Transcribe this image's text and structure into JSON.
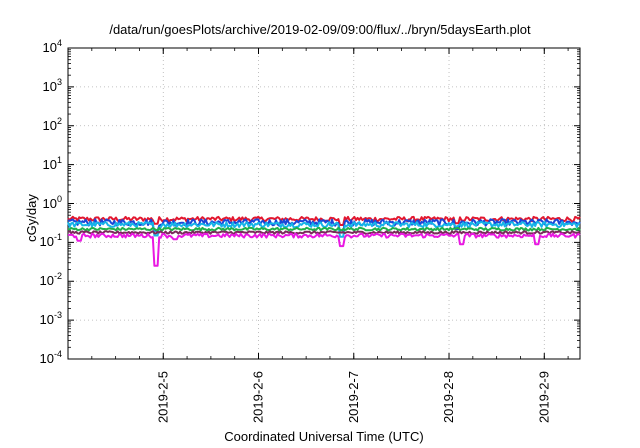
{
  "chart_data": {
    "type": "line",
    "title": "/data/run/goesPlots/archive/2019-02-09/09:00/flux/../bryn/5daysEarth.plot",
    "xlabel": "Coordinated Universal Time (UTC)",
    "ylabel": "cGy/day",
    "yscale": "log",
    "ylim": [
      0.0001,
      10000
    ],
    "xlim": [
      "2019-02-04 00:00",
      "2019-02-09 09:00"
    ],
    "xtick_labels": [
      "2019-2-5",
      "2019-2-6",
      "2019-2-7",
      "2019-2-8",
      "2019-2-9"
    ],
    "ytick_labels": [
      {
        "base": "10",
        "exp": "4"
      },
      {
        "base": "10",
        "exp": "3"
      },
      {
        "base": "10",
        "exp": "2"
      },
      {
        "base": "10",
        "exp": "1"
      },
      {
        "base": "10",
        "exp": "0"
      },
      {
        "base": "10",
        "exp": "-1"
      },
      {
        "base": "10",
        "exp": "-2"
      },
      {
        "base": "10",
        "exp": "-3"
      },
      {
        "base": "10",
        "exp": "-4"
      }
    ],
    "grid": true,
    "series": [
      {
        "color": "#e3172f",
        "level": 0.4,
        "noise": 0.06,
        "dips": [
          {
            "t": "2019-02-04 22:00",
            "v": 0.3
          },
          {
            "t": "2019-02-06 21:00",
            "v": 0.28
          },
          {
            "t": "2019-02-08 02:00",
            "v": 0.31
          }
        ]
      },
      {
        "color": "#1a46d8",
        "level": 0.33,
        "noise": 0.07,
        "dips": [
          {
            "t": "2019-02-04 22:00",
            "v": 0.2
          },
          {
            "t": "2019-02-06 21:00",
            "v": 0.18
          },
          {
            "t": "2019-02-08 02:00",
            "v": 0.22
          }
        ]
      },
      {
        "color": "#16b4e8",
        "level": 0.29,
        "noise": 0.05,
        "dips": [
          {
            "t": "2019-02-04 22:00",
            "v": 0.15
          },
          {
            "t": "2019-02-06 21:00",
            "v": 0.14
          }
        ]
      },
      {
        "color": "#21b04a",
        "level": 0.22,
        "noise": 0.02,
        "dips": []
      },
      {
        "color": "#7a2a5a",
        "level": 0.18,
        "noise": 0.015,
        "dips": []
      },
      {
        "color": "#e918e2",
        "level": 0.15,
        "noise": 0.02,
        "dips": [
          {
            "t": "2019-02-04 03:00",
            "v": 0.11
          },
          {
            "t": "2019-02-04 22:00",
            "v": 0.025
          },
          {
            "t": "2019-02-05 03:00",
            "v": 0.12
          },
          {
            "t": "2019-02-06 21:00",
            "v": 0.08
          },
          {
            "t": "2019-02-08 03:00",
            "v": 0.09
          },
          {
            "t": "2019-02-08 22:00",
            "v": 0.09
          }
        ]
      }
    ]
  }
}
